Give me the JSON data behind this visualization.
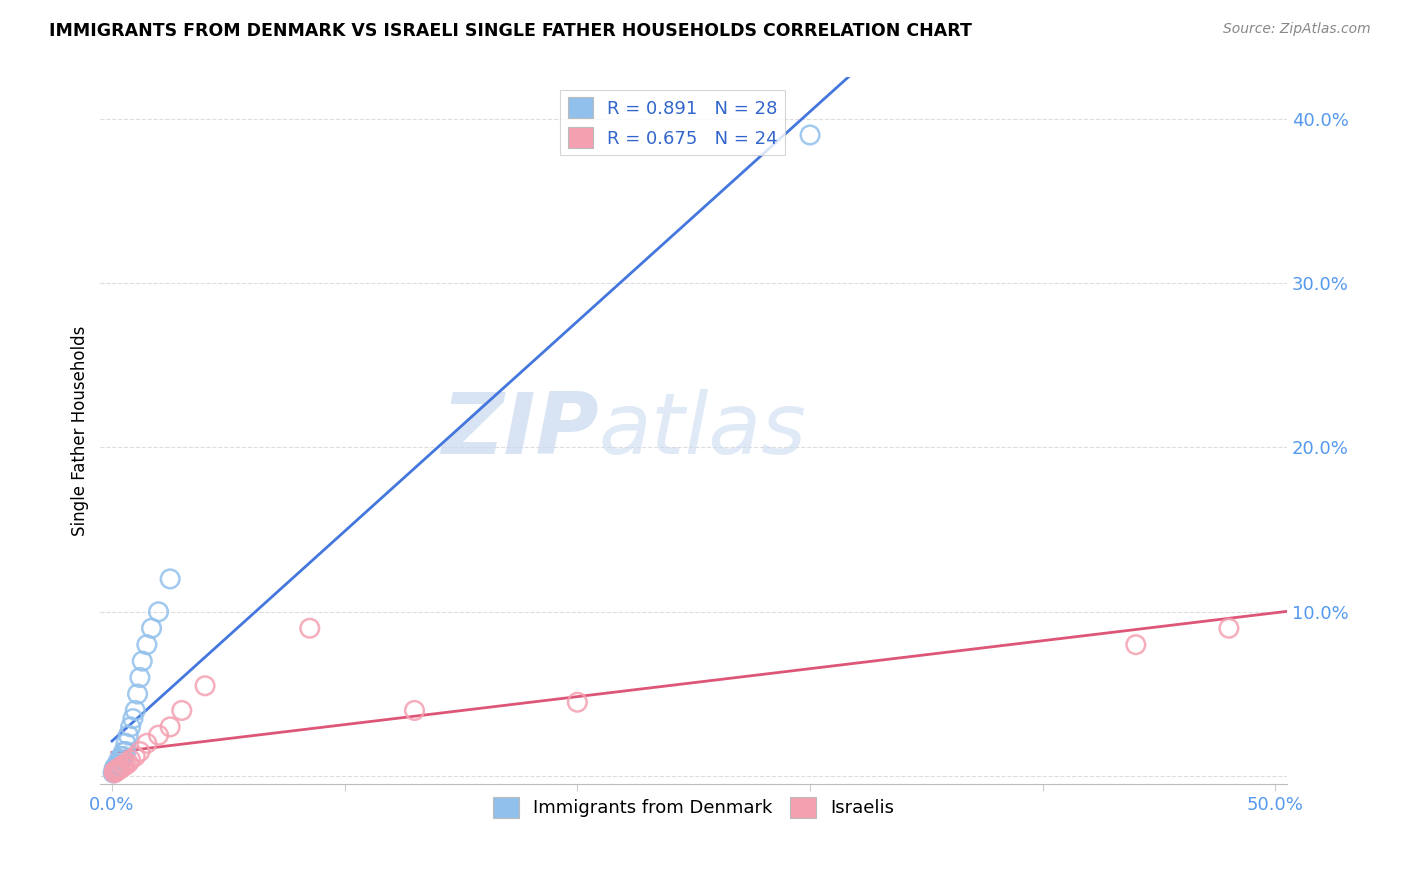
{
  "title": "IMMIGRANTS FROM DENMARK VS ISRAELI SINGLE FATHER HOUSEHOLDS CORRELATION CHART",
  "source": "Source: ZipAtlas.com",
  "ylabel": "Single Father Households",
  "yticks": [
    0.0,
    0.1,
    0.2,
    0.3,
    0.4
  ],
  "ytick_labels": [
    "",
    "10.0%",
    "20.0%",
    "30.0%",
    "40.0%"
  ],
  "xticks": [
    0.0,
    0.1,
    0.2,
    0.3,
    0.4,
    0.5
  ],
  "xtick_labels": [
    "0.0%",
    "",
    "",
    "",
    "",
    "50.0%"
  ],
  "xlim": [
    -0.005,
    0.505
  ],
  "ylim": [
    -0.005,
    0.425
  ],
  "legend_r1": "R = 0.891   N = 28",
  "legend_r2": "R = 0.675   N = 24",
  "legend_label1": "Immigrants from Denmark",
  "legend_label2": "Israelis",
  "blue_color": "#92C0EC",
  "pink_color": "#F4A0B0",
  "blue_scatter_edge": "#92C0EC",
  "pink_scatter_edge": "#F4A0B0",
  "blue_line_color": "#4477DD",
  "pink_line_color": "#DD5577",
  "watermark_zip": "ZIP",
  "watermark_atlas": "atlas",
  "denmark_x": [
    0.0005,
    0.001,
    0.001,
    0.001,
    0.002,
    0.002,
    0.002,
    0.003,
    0.003,
    0.003,
    0.004,
    0.004,
    0.005,
    0.005,
    0.006,
    0.006,
    0.007,
    0.008,
    0.009,
    0.01,
    0.011,
    0.012,
    0.013,
    0.015,
    0.017,
    0.02,
    0.025,
    0.3
  ],
  "denmark_y": [
    0.002,
    0.003,
    0.004,
    0.005,
    0.005,
    0.006,
    0.007,
    0.007,
    0.008,
    0.01,
    0.01,
    0.012,
    0.012,
    0.015,
    0.015,
    0.02,
    0.025,
    0.03,
    0.035,
    0.04,
    0.05,
    0.06,
    0.07,
    0.08,
    0.09,
    0.1,
    0.12,
    0.39
  ],
  "israel_x": [
    0.001,
    0.001,
    0.002,
    0.002,
    0.003,
    0.003,
    0.004,
    0.005,
    0.005,
    0.006,
    0.007,
    0.008,
    0.01,
    0.012,
    0.015,
    0.02,
    0.025,
    0.03,
    0.04,
    0.085,
    0.13,
    0.2,
    0.44,
    0.48
  ],
  "israel_y": [
    0.002,
    0.003,
    0.003,
    0.004,
    0.004,
    0.005,
    0.005,
    0.006,
    0.007,
    0.007,
    0.008,
    0.01,
    0.012,
    0.015,
    0.02,
    0.025,
    0.03,
    0.04,
    0.055,
    0.09,
    0.04,
    0.045,
    0.08,
    0.09
  ]
}
